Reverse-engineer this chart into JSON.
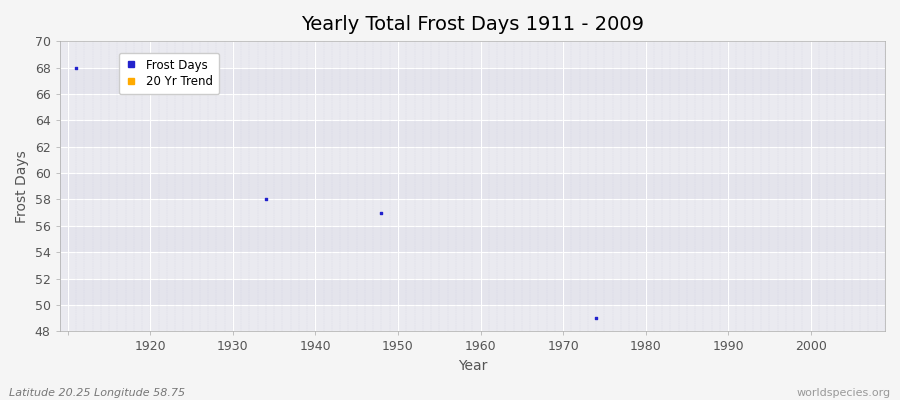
{
  "title": "Yearly Total Frost Days 1911 - 2009",
  "xlabel": "Year",
  "ylabel": "Frost Days",
  "subtitle_left": "Latitude 20.25 Longitude 58.75",
  "subtitle_right": "worldspecies.org",
  "xlim": [
    1909,
    2009
  ],
  "ylim": [
    48,
    70
  ],
  "yticks": [
    48,
    50,
    52,
    54,
    56,
    58,
    60,
    62,
    64,
    66,
    68,
    70
  ],
  "xticks": [
    1910,
    1920,
    1930,
    1940,
    1950,
    1960,
    1970,
    1980,
    1990,
    2000
  ],
  "xtick_labels": [
    "",
    "1920",
    "1930",
    "1940",
    "1950",
    "1960",
    "1970",
    "1980",
    "1990",
    "2000"
  ],
  "data_points": [
    {
      "year": 1911,
      "value": 68
    },
    {
      "year": 1934,
      "value": 58
    },
    {
      "year": 1948,
      "value": 57
    },
    {
      "year": 1974,
      "value": 49
    }
  ],
  "dot_color": "#2222cc",
  "trend_color": "#ffaa00",
  "bg_light": "#ebebf0",
  "bg_dark": "#e0e0ea",
  "band_color_even": "#eaeaf0",
  "band_color_odd": "#e4e4ec",
  "plot_bg": "#e8e8f0",
  "outer_bg": "#f0f0f0",
  "grid_h_color": "#ffffff",
  "grid_v_color": "#ccccdd",
  "title_fontsize": 14,
  "axis_label_fontsize": 10,
  "tick_fontsize": 9,
  "subtitle_fontsize": 8
}
